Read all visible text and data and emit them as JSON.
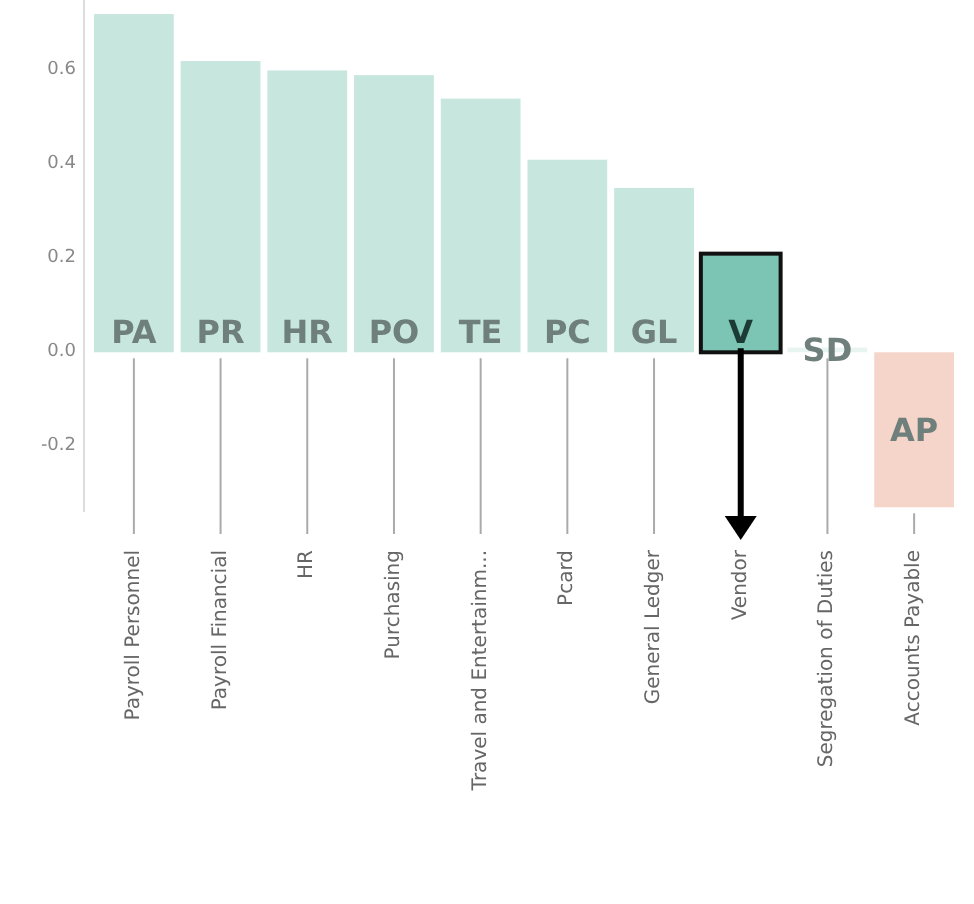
{
  "chart_data": {
    "type": "bar",
    "categories": [
      "Payroll Personnel",
      "Payroll Financial",
      "HR",
      "Purchasing",
      "Travel and Entertainm...",
      "Pcard",
      "General Ledger",
      "Vendor",
      "Segregation of Duties",
      "Accounts Payable"
    ],
    "values": [
      0.72,
      0.62,
      0.6,
      0.59,
      0.54,
      0.41,
      0.35,
      0.21,
      0.01,
      -0.33
    ],
    "colors": [
      "#c6e6de",
      "#c6e6de",
      "#c6e6de",
      "#c6e6de",
      "#c6e6de",
      "#c6e6de",
      "#c6e6de",
      "#7cc4b4",
      "#e8f4f0",
      "#f5d5ca"
    ],
    "ylim": [
      -0.34,
      0.75
    ],
    "yticks": [
      {
        "value": -0.2,
        "label": "-0.2"
      },
      {
        "value": 0,
        "label": "0.0"
      },
      {
        "value": 0.2,
        "label": "0.2"
      },
      {
        "value": 0.4,
        "label": "0.4"
      },
      {
        "value": 0.6,
        "label": "0.6"
      }
    ],
    "annotations": [
      "PA",
      "PR",
      "HR",
      "PO",
      "TE",
      "PC",
      "GL",
      "V",
      "SD",
      "AP"
    ]
  }
}
